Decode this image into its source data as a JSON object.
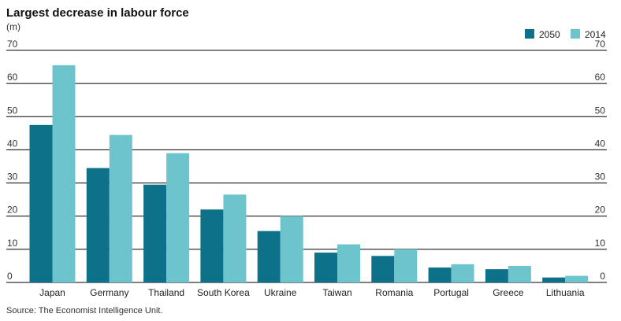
{
  "chart_data": {
    "type": "bar",
    "title": "Largest decrease in labour force",
    "unit_label": "(m)",
    "categories": [
      "Japan",
      "Germany",
      "Thailand",
      "South Korea",
      "Ukraine",
      "Taiwan",
      "Romania",
      "Portugal",
      "Greece",
      "Lithuania"
    ],
    "series": [
      {
        "name": "2050",
        "color": "#0d7289",
        "values": [
          47.5,
          34.5,
          29.5,
          22,
          15.5,
          9,
          8,
          4.5,
          4,
          1.5
        ]
      },
      {
        "name": "2014",
        "color": "#6ec4cc",
        "values": [
          65.5,
          44.5,
          39,
          26.5,
          20,
          11.5,
          10,
          5.5,
          5,
          2
        ]
      }
    ],
    "y_ticks": [
      0,
      10,
      20,
      30,
      40,
      50,
      60,
      70
    ],
    "ylim": [
      0,
      70
    ],
    "grid": true,
    "legend_position": "top-right",
    "source": "Source: The Economist Intelligence Unit."
  }
}
